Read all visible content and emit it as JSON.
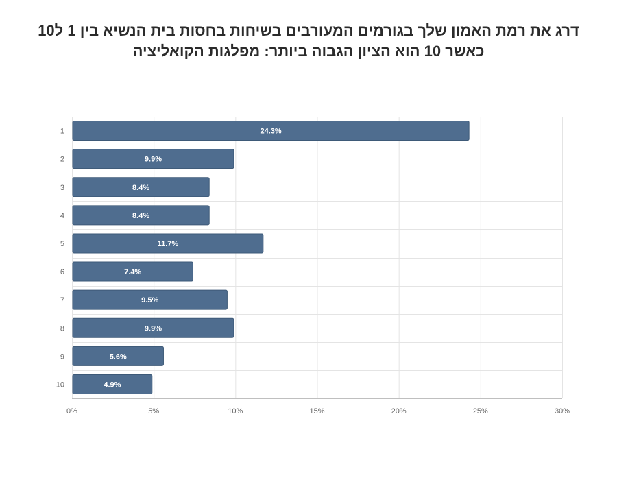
{
  "title": {
    "line1": "דרג את רמת האמון שלך בגורמים המעורבים בשיחות בחסות בית הנשיא בין 1 ל10",
    "line2": "כאשר 10 הוא הציון הגבוה ביותר: מפלגות הקואליציה"
  },
  "chart_data": {
    "type": "bar",
    "orientation": "horizontal",
    "categories": [
      "1",
      "2",
      "3",
      "4",
      "5",
      "6",
      "7",
      "8",
      "9",
      "10"
    ],
    "values": [
      24.3,
      9.9,
      8.4,
      8.4,
      11.7,
      7.4,
      9.5,
      9.9,
      5.6,
      4.9
    ],
    "data_labels": [
      "24.3%",
      "9.9%",
      "8.4%",
      "8.4%",
      "11.7%",
      "7.4%",
      "9.5%",
      "9.9%",
      "5.6%",
      "4.9%"
    ],
    "xlim": [
      0,
      30
    ],
    "x_ticks": [
      0,
      5,
      10,
      15,
      20,
      25,
      30
    ],
    "x_tick_labels": [
      "0%",
      "5%",
      "10%",
      "15%",
      "20%",
      "25%",
      "30%"
    ],
    "grid": true,
    "bar_color": "#4f6d8f",
    "bar_border_color": "#3e5a78",
    "grid_color": "#e4e4e4",
    "axis_color": "#bfbfbf"
  }
}
